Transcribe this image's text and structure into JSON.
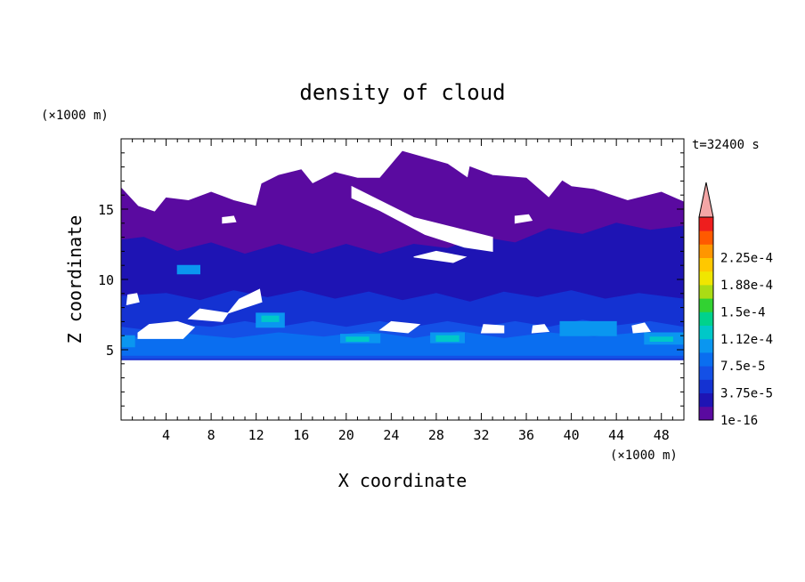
{
  "chart_data": {
    "type": "heatmap",
    "title": "density of cloud",
    "xlabel": "X coordinate",
    "ylabel": "Z coordinate",
    "x_unit": "(×1000 m)",
    "y_unit": "(×1000 m)",
    "time_label": "t=32400 s",
    "xlim": [
      0,
      50
    ],
    "ylim": [
      0,
      20
    ],
    "x_ticks": [
      4,
      8,
      12,
      16,
      20,
      24,
      28,
      32,
      36,
      40,
      44,
      48
    ],
    "y_ticks": [
      5,
      10,
      15
    ],
    "colorbar": {
      "levels": [
        1e-16,
        1.875e-05,
        3.75e-05,
        5.625e-05,
        7.5e-05,
        9.375e-05,
        0.0001125,
        0.00013125,
        0.00015,
        0.00016875,
        0.0001875,
        0.00020625,
        0.000225,
        0.00024375
      ],
      "colors": [
        "#5a0aa0",
        "#1e14b4",
        "#1432d2",
        "#1450e6",
        "#0a6ef0",
        "#0a96f0",
        "#00c8c8",
        "#00d28c",
        "#32d232",
        "#aadc14",
        "#f0e600",
        "#ffc800",
        "#ff9600",
        "#ff5a00",
        "#ee1e1e"
      ],
      "overflow_color": "#f4a6a6",
      "labels": [
        "1e-16",
        "3.75e-5",
        "7.5e-5",
        "1.12e-4",
        "1.5e-4",
        "1.88e-4",
        "2.25e-4"
      ]
    },
    "regions": [
      {
        "level": 0,
        "points": [
          [
            0,
            4.3
          ],
          [
            50,
            4.3
          ],
          [
            50,
            15.5
          ],
          [
            48,
            16.2
          ],
          [
            45,
            15.6
          ],
          [
            42,
            16.4
          ],
          [
            40,
            16.6
          ],
          [
            39.2,
            17.0
          ],
          [
            38,
            15.8
          ],
          [
            36,
            17.2
          ],
          [
            33,
            17.4
          ],
          [
            31,
            18.0
          ],
          [
            30.8,
            17.2
          ],
          [
            29,
            18.2
          ],
          [
            25,
            19.1
          ],
          [
            23,
            17.2
          ],
          [
            21,
            17.2
          ],
          [
            19,
            17.6
          ],
          [
            17,
            16.8
          ],
          [
            16,
            17.8
          ],
          [
            14,
            17.4
          ],
          [
            12.5,
            16.8
          ],
          [
            12,
            15.2
          ],
          [
            10,
            15.6
          ],
          [
            8,
            16.2
          ],
          [
            6,
            15.6
          ],
          [
            4,
            15.8
          ],
          [
            3,
            14.8
          ],
          [
            1.5,
            15.2
          ],
          [
            0,
            16.5
          ]
        ]
      },
      {
        "level": 1,
        "points": [
          [
            0,
            4.3
          ],
          [
            50,
            4.3
          ],
          [
            50,
            13.8
          ],
          [
            47,
            13.5
          ],
          [
            44,
            14.0
          ],
          [
            41,
            13.2
          ],
          [
            38,
            13.6
          ],
          [
            35,
            12.6
          ],
          [
            32,
            13.0
          ],
          [
            29,
            12.2
          ],
          [
            26,
            12.5
          ],
          [
            23,
            11.8
          ],
          [
            20,
            12.5
          ],
          [
            17,
            11.8
          ],
          [
            14,
            12.5
          ],
          [
            11,
            11.8
          ],
          [
            8,
            12.6
          ],
          [
            5,
            12.0
          ],
          [
            2,
            13.0
          ],
          [
            0,
            12.8
          ]
        ]
      },
      {
        "level": 2,
        "points": [
          [
            0,
            4.3
          ],
          [
            50,
            4.3
          ],
          [
            50,
            8.6
          ],
          [
            46,
            9.0
          ],
          [
            43,
            8.6
          ],
          [
            40,
            9.2
          ],
          [
            37,
            8.7
          ],
          [
            34,
            9.1
          ],
          [
            31,
            8.4
          ],
          [
            28,
            9.0
          ],
          [
            25,
            8.5
          ],
          [
            22,
            9.1
          ],
          [
            19,
            8.6
          ],
          [
            16,
            9.2
          ],
          [
            13,
            8.7
          ],
          [
            10,
            9.2
          ],
          [
            7,
            8.5
          ],
          [
            4,
            9.0
          ],
          [
            0,
            8.8
          ]
        ]
      },
      {
        "level": 3,
        "points": [
          [
            0,
            4.4
          ],
          [
            50,
            4.4
          ],
          [
            50,
            6.6
          ],
          [
            47,
            7.0
          ],
          [
            44,
            6.7
          ],
          [
            41,
            7.1
          ],
          [
            38,
            6.6
          ],
          [
            35,
            7.0
          ],
          [
            32,
            6.6
          ],
          [
            29,
            7.0
          ],
          [
            26,
            6.6
          ],
          [
            23,
            7.0
          ],
          [
            20,
            6.6
          ],
          [
            17,
            7.0
          ],
          [
            14,
            6.6
          ],
          [
            11,
            7.0
          ],
          [
            8,
            6.6
          ],
          [
            5,
            6.8
          ],
          [
            2,
            6.4
          ],
          [
            0,
            6.6
          ]
        ]
      },
      {
        "level": 4,
        "points": [
          [
            0,
            4.6
          ],
          [
            50,
            4.6
          ],
          [
            50,
            5.9
          ],
          [
            46,
            6.2
          ],
          [
            42,
            5.9
          ],
          [
            38,
            6.2
          ],
          [
            34,
            5.8
          ],
          [
            30,
            6.3
          ],
          [
            26,
            5.8
          ],
          [
            22,
            6.3
          ],
          [
            18,
            5.9
          ],
          [
            14,
            6.2
          ],
          [
            10,
            5.8
          ],
          [
            6,
            6.1
          ],
          [
            2,
            5.8
          ],
          [
            0,
            6.0
          ]
        ]
      },
      {
        "level": 5,
        "points": [
          [
            27.5,
            5.5
          ],
          [
            30.5,
            5.5
          ],
          [
            30.5,
            6.2
          ],
          [
            27.5,
            6.2
          ]
        ]
      },
      {
        "level": 5,
        "points": [
          [
            12,
            6.6
          ],
          [
            14.5,
            6.6
          ],
          [
            14.5,
            7.6
          ],
          [
            12,
            7.6
          ]
        ]
      },
      {
        "level": 5,
        "points": [
          [
            46.5,
            5.4
          ],
          [
            50,
            5.4
          ],
          [
            50,
            6.2
          ],
          [
            46.5,
            6.2
          ]
        ]
      },
      {
        "level": 5,
        "points": [
          [
            39,
            6.0
          ],
          [
            44,
            6.0
          ],
          [
            44,
            7.0
          ],
          [
            39,
            7.0
          ]
        ]
      },
      {
        "level": 5,
        "points": [
          [
            19.5,
            5.5
          ],
          [
            23,
            5.5
          ],
          [
            23,
            6.1
          ],
          [
            19.5,
            6.1
          ]
        ]
      },
      {
        "level": 5,
        "points": [
          [
            0,
            5.2
          ],
          [
            1.2,
            5.2
          ],
          [
            1.2,
            6.0
          ],
          [
            0,
            6.0
          ]
        ]
      },
      {
        "level": 5,
        "points": [
          [
            5,
            10.4
          ],
          [
            7,
            10.4
          ],
          [
            7,
            11.0
          ],
          [
            5,
            11.0
          ]
        ]
      },
      {
        "level": 6,
        "points": [
          [
            28,
            5.6
          ],
          [
            30,
            5.6
          ],
          [
            30,
            6.0
          ],
          [
            28,
            6.0
          ]
        ]
      },
      {
        "level": 6,
        "points": [
          [
            47,
            5.6
          ],
          [
            49,
            5.6
          ],
          [
            49,
            5.9
          ],
          [
            47,
            5.9
          ]
        ]
      },
      {
        "level": 6,
        "points": [
          [
            20,
            5.6
          ],
          [
            22,
            5.6
          ],
          [
            22,
            5.9
          ],
          [
            20,
            5.9
          ]
        ]
      },
      {
        "level": 6,
        "points": [
          [
            12.5,
            7.0
          ],
          [
            14,
            7.0
          ],
          [
            14,
            7.4
          ],
          [
            12.5,
            7.4
          ]
        ]
      },
      {
        "level": -1,
        "points": [
          [
            1.5,
            5.8
          ],
          [
            5.5,
            5.8
          ],
          [
            6.5,
            6.6
          ],
          [
            5,
            7.0
          ],
          [
            2.5,
            6.8
          ],
          [
            1.5,
            6.2
          ]
        ]
      },
      {
        "level": -1,
        "points": [
          [
            6,
            7.2
          ],
          [
            9,
            7.0
          ],
          [
            9.5,
            7.6
          ],
          [
            7,
            7.9
          ]
        ]
      },
      {
        "level": -1,
        "points": [
          [
            9.5,
            7.6
          ],
          [
            12.5,
            8.4
          ],
          [
            12.3,
            9.3
          ],
          [
            10.5,
            8.6
          ]
        ]
      },
      {
        "level": -1,
        "points": [
          [
            0.5,
            8.2
          ],
          [
            1.6,
            8.4
          ],
          [
            1.4,
            9.0
          ],
          [
            0.6,
            8.9
          ]
        ]
      },
      {
        "level": -1,
        "points": [
          [
            23,
            6.4
          ],
          [
            25.5,
            6.2
          ],
          [
            26.5,
            6.8
          ],
          [
            24,
            7.0
          ]
        ]
      },
      {
        "level": -1,
        "points": [
          [
            32,
            6.2
          ],
          [
            34,
            6.2
          ],
          [
            34,
            6.7
          ],
          [
            32.2,
            6.8
          ]
        ]
      },
      {
        "level": -1,
        "points": [
          [
            36.5,
            6.2
          ],
          [
            38,
            6.3
          ],
          [
            37.6,
            6.8
          ],
          [
            36.6,
            6.7
          ]
        ]
      },
      {
        "level": -1,
        "points": [
          [
            45.5,
            6.2
          ],
          [
            47,
            6.3
          ],
          [
            46.5,
            6.9
          ],
          [
            45.4,
            6.7
          ]
        ]
      },
      {
        "level": -1,
        "points": [
          [
            20.5,
            16.6
          ],
          [
            26,
            14.4
          ],
          [
            30,
            13.6
          ],
          [
            33,
            13.0
          ],
          [
            33,
            12.0
          ],
          [
            30.5,
            12.3
          ],
          [
            27,
            13.2
          ],
          [
            23,
            14.9
          ],
          [
            20.5,
            15.8
          ]
        ]
      },
      {
        "level": -1,
        "points": [
          [
            26,
            11.6
          ],
          [
            29.5,
            11.2
          ],
          [
            30.6,
            11.6
          ],
          [
            28,
            12.0
          ]
        ]
      },
      {
        "level": -1,
        "points": [
          [
            9,
            14.0
          ],
          [
            10.2,
            14.1
          ],
          [
            10,
            14.5
          ],
          [
            9,
            14.4
          ]
        ]
      },
      {
        "level": -1,
        "points": [
          [
            35,
            14.0
          ],
          [
            36.5,
            14.2
          ],
          [
            36.2,
            14.6
          ],
          [
            35,
            14.5
          ]
        ]
      }
    ]
  }
}
